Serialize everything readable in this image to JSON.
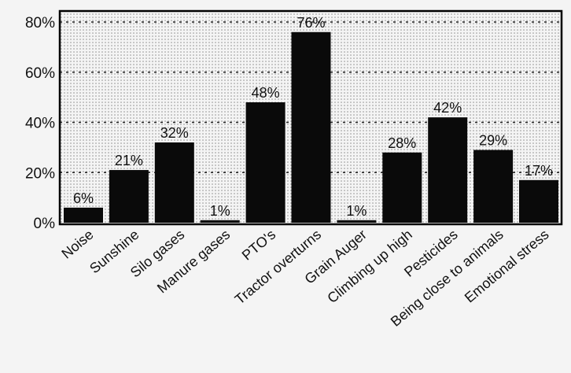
{
  "chart_data": {
    "type": "bar",
    "title": "",
    "xlabel": "",
    "ylabel": "",
    "categories": [
      "Noise",
      "Sunshine",
      "Silo gases",
      "Manure gases",
      "PTO's",
      "Tractor overturns",
      "Grain Auger",
      "Climbing up high",
      "Pesticides",
      "Being close to animals",
      "Emotional stress"
    ],
    "values": [
      6,
      21,
      32,
      1,
      48,
      76,
      1,
      28,
      42,
      29,
      17
    ],
    "data_labels": [
      "6%",
      "21%",
      "32%",
      "1%",
      "48%",
      "76%",
      "1%",
      "28%",
      "42%",
      "29%",
      "17%"
    ],
    "ylim": [
      0,
      80
    ],
    "yticks": [
      0,
      20,
      40,
      60,
      80
    ],
    "ytick_labels": [
      "0%",
      "20%",
      "40%",
      "60%",
      "80%"
    ],
    "grid": "horizontal-dotted",
    "bar_color": "#0a0a0a",
    "background": "#f4f4f4"
  }
}
